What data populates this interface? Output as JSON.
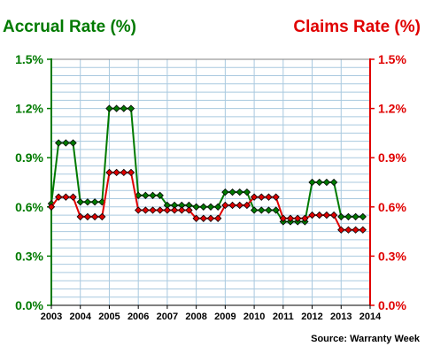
{
  "chart_data": {
    "type": "line",
    "left_title": "Accrual Rate (%)",
    "right_title": "Claims Rate (%)",
    "source": "Source: Warranty Week",
    "y_ticks": [
      "0.0%",
      "0.3%",
      "0.6%",
      "0.9%",
      "1.2%",
      "1.5%"
    ],
    "ylim": [
      0,
      1.5
    ],
    "x_ticks": [
      "2003",
      "2004",
      "2005",
      "2006",
      "2007",
      "2008",
      "2009",
      "2010",
      "2011",
      "2012",
      "2013",
      "2014"
    ],
    "xlim": [
      2003,
      2014
    ],
    "grid": true,
    "series": [
      {
        "color": "#007a00",
        "axis": "left",
        "points": [
          [
            2003.0,
            0.62
          ],
          [
            2003.25,
            0.99
          ],
          [
            2003.5,
            0.99
          ],
          [
            2003.75,
            0.99
          ],
          [
            2004.0,
            0.63
          ],
          [
            2004.25,
            0.63
          ],
          [
            2004.5,
            0.63
          ],
          [
            2004.75,
            0.63
          ],
          [
            2005.0,
            1.2
          ],
          [
            2005.25,
            1.2
          ],
          [
            2005.5,
            1.2
          ],
          [
            2005.75,
            1.2
          ],
          [
            2006.0,
            0.67
          ],
          [
            2006.25,
            0.67
          ],
          [
            2006.5,
            0.67
          ],
          [
            2006.75,
            0.67
          ],
          [
            2007.0,
            0.61
          ],
          [
            2007.25,
            0.61
          ],
          [
            2007.5,
            0.61
          ],
          [
            2007.75,
            0.61
          ],
          [
            2008.0,
            0.6
          ],
          [
            2008.25,
            0.6
          ],
          [
            2008.5,
            0.6
          ],
          [
            2008.75,
            0.6
          ],
          [
            2009.0,
            0.69
          ],
          [
            2009.25,
            0.69
          ],
          [
            2009.5,
            0.69
          ],
          [
            2009.75,
            0.69
          ],
          [
            2010.0,
            0.58
          ],
          [
            2010.25,
            0.58
          ],
          [
            2010.5,
            0.58
          ],
          [
            2010.75,
            0.58
          ],
          [
            2011.0,
            0.51
          ],
          [
            2011.25,
            0.51
          ],
          [
            2011.5,
            0.51
          ],
          [
            2011.75,
            0.51
          ],
          [
            2012.0,
            0.75
          ],
          [
            2012.25,
            0.75
          ],
          [
            2012.5,
            0.75
          ],
          [
            2012.75,
            0.75
          ],
          [
            2013.0,
            0.54
          ],
          [
            2013.25,
            0.54
          ],
          [
            2013.5,
            0.54
          ],
          [
            2013.75,
            0.54
          ]
        ]
      },
      {
        "color": "#e00000",
        "axis": "right",
        "points": [
          [
            2003.0,
            0.6
          ],
          [
            2003.25,
            0.66
          ],
          [
            2003.5,
            0.66
          ],
          [
            2003.75,
            0.66
          ],
          [
            2004.0,
            0.54
          ],
          [
            2004.25,
            0.54
          ],
          [
            2004.5,
            0.54
          ],
          [
            2004.75,
            0.54
          ],
          [
            2005.0,
            0.81
          ],
          [
            2005.25,
            0.81
          ],
          [
            2005.5,
            0.81
          ],
          [
            2005.75,
            0.81
          ],
          [
            2006.0,
            0.58
          ],
          [
            2006.25,
            0.58
          ],
          [
            2006.5,
            0.58
          ],
          [
            2006.75,
            0.58
          ],
          [
            2007.0,
            0.58
          ],
          [
            2007.25,
            0.58
          ],
          [
            2007.5,
            0.58
          ],
          [
            2007.75,
            0.58
          ],
          [
            2008.0,
            0.53
          ],
          [
            2008.25,
            0.53
          ],
          [
            2008.5,
            0.53
          ],
          [
            2008.75,
            0.53
          ],
          [
            2009.0,
            0.61
          ],
          [
            2009.25,
            0.61
          ],
          [
            2009.5,
            0.61
          ],
          [
            2009.75,
            0.61
          ],
          [
            2010.0,
            0.66
          ],
          [
            2010.25,
            0.66
          ],
          [
            2010.5,
            0.66
          ],
          [
            2010.75,
            0.66
          ],
          [
            2011.0,
            0.53
          ],
          [
            2011.25,
            0.53
          ],
          [
            2011.5,
            0.53
          ],
          [
            2011.75,
            0.53
          ],
          [
            2012.0,
            0.55
          ],
          [
            2012.25,
            0.55
          ],
          [
            2012.5,
            0.55
          ],
          [
            2012.75,
            0.55
          ],
          [
            2013.0,
            0.46
          ],
          [
            2013.25,
            0.46
          ],
          [
            2013.5,
            0.46
          ],
          [
            2013.75,
            0.46
          ]
        ]
      }
    ],
    "colors": {
      "left_axis": "#007a00",
      "right_axis": "#e00000",
      "grid": "#a9c9df",
      "plot_border": "#808080",
      "marker_outline": "#000000"
    }
  }
}
